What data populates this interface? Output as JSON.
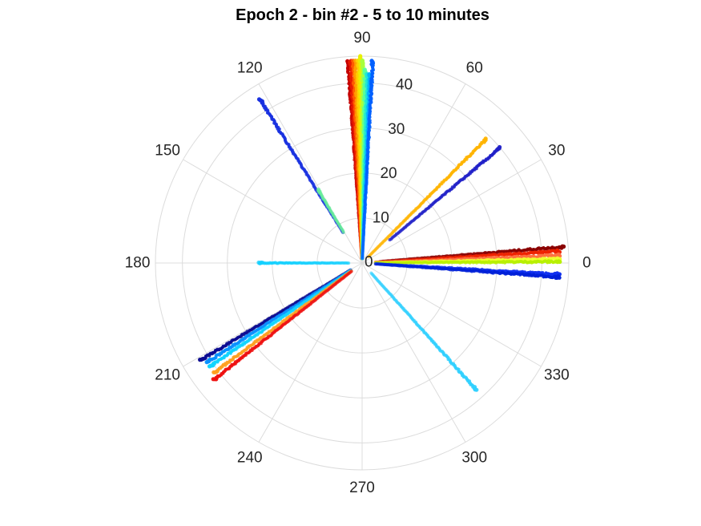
{
  "chart_data": {
    "type": "scatter",
    "projection": "polar",
    "title": "Epoch 2 - bin #2 - 5 to 10 minutes",
    "theta_unit": "degrees",
    "theta_ticks": [
      "0",
      "30",
      "60",
      "90",
      "120",
      "150",
      "180",
      "210",
      "240",
      "270",
      "300",
      "330"
    ],
    "r_ticks": [
      "0",
      "10",
      "20",
      "30",
      "40"
    ],
    "r_tick_angle_deg": 80,
    "r_lim": [
      0,
      46
    ],
    "grid": true,
    "colormap": "jet",
    "series": [
      {
        "theta": 94.0,
        "r_range": [
          1,
          45
        ],
        "color": "#c40000"
      },
      {
        "theta": 93.3,
        "r_range": [
          1,
          45
        ],
        "color": "#e81a00"
      },
      {
        "theta": 92.6,
        "r_range": [
          1,
          45
        ],
        "color": "#ff5a00"
      },
      {
        "theta": 91.9,
        "r_range": [
          1,
          45
        ],
        "color": "#ffa000"
      },
      {
        "theta": 91.2,
        "r_range": [
          1,
          45
        ],
        "color": "#ffd000"
      },
      {
        "theta": 90.5,
        "r_range": [
          1,
          46
        ],
        "color": "#e8f000"
      },
      {
        "theta": 89.8,
        "r_range": [
          1,
          45
        ],
        "color": "#a8ff3c"
      },
      {
        "theta": 89.1,
        "r_range": [
          1,
          43
        ],
        "color": "#5aff9a"
      },
      {
        "theta": 88.4,
        "r_range": [
          1,
          42
        ],
        "color": "#20e6d4"
      },
      {
        "theta": 87.6,
        "r_range": [
          1,
          42
        ],
        "color": "#00b0ff"
      },
      {
        "theta": 87.0,
        "r_range": [
          1,
          45
        ],
        "color": "#0060ff"
      },
      {
        "theta": 122.0,
        "r_range": [
          8,
          43
        ],
        "color": "#1830e0"
      },
      {
        "theta": 121.0,
        "r_range": [
          8,
          19
        ],
        "color": "#66ee9a"
      },
      {
        "theta": 45.0,
        "r_range": [
          2,
          39
        ],
        "color": "#ffb400"
      },
      {
        "theta": 39.8,
        "r_range": [
          8,
          40
        ],
        "color": "#2020c8"
      },
      {
        "theta": 4.6,
        "r_range": [
          4,
          45
        ],
        "color": "#8a0000"
      },
      {
        "theta": 3.4,
        "r_range": [
          3,
          44
        ],
        "color": "#ee2200"
      },
      {
        "theta": 2.2,
        "r_range": [
          3,
          44
        ],
        "color": "#ff7040"
      },
      {
        "theta": 1.2,
        "r_range": [
          3,
          44
        ],
        "color": "#f0ff30"
      },
      {
        "theta": 0.4,
        "r_range": [
          3,
          44
        ],
        "color": "#b8f000"
      },
      {
        "theta": -3.3,
        "r_range": [
          3,
          44
        ],
        "color": "#1030f0"
      },
      {
        "theta": -4.1,
        "r_range": [
          3,
          44
        ],
        "color": "#0020d8"
      },
      {
        "theta": 180.0,
        "r_range": [
          3,
          23
        ],
        "color": "#10d0ff"
      },
      {
        "theta": 211.0,
        "r_range": [
          3,
          42
        ],
        "color": "#0a0a90"
      },
      {
        "theta": 212.6,
        "r_range": [
          3,
          41
        ],
        "color": "#0890ff"
      },
      {
        "theta": 214.2,
        "r_range": [
          3,
          41
        ],
        "color": "#10d4ff"
      },
      {
        "theta": 216.5,
        "r_range": [
          3,
          41
        ],
        "color": "#ffa020"
      },
      {
        "theta": 218.2,
        "r_range": [
          3,
          42
        ],
        "color": "#ee1010"
      },
      {
        "theta": 312.0,
        "r_range": [
          3,
          38
        ],
        "color": "#30d0ff"
      }
    ]
  }
}
